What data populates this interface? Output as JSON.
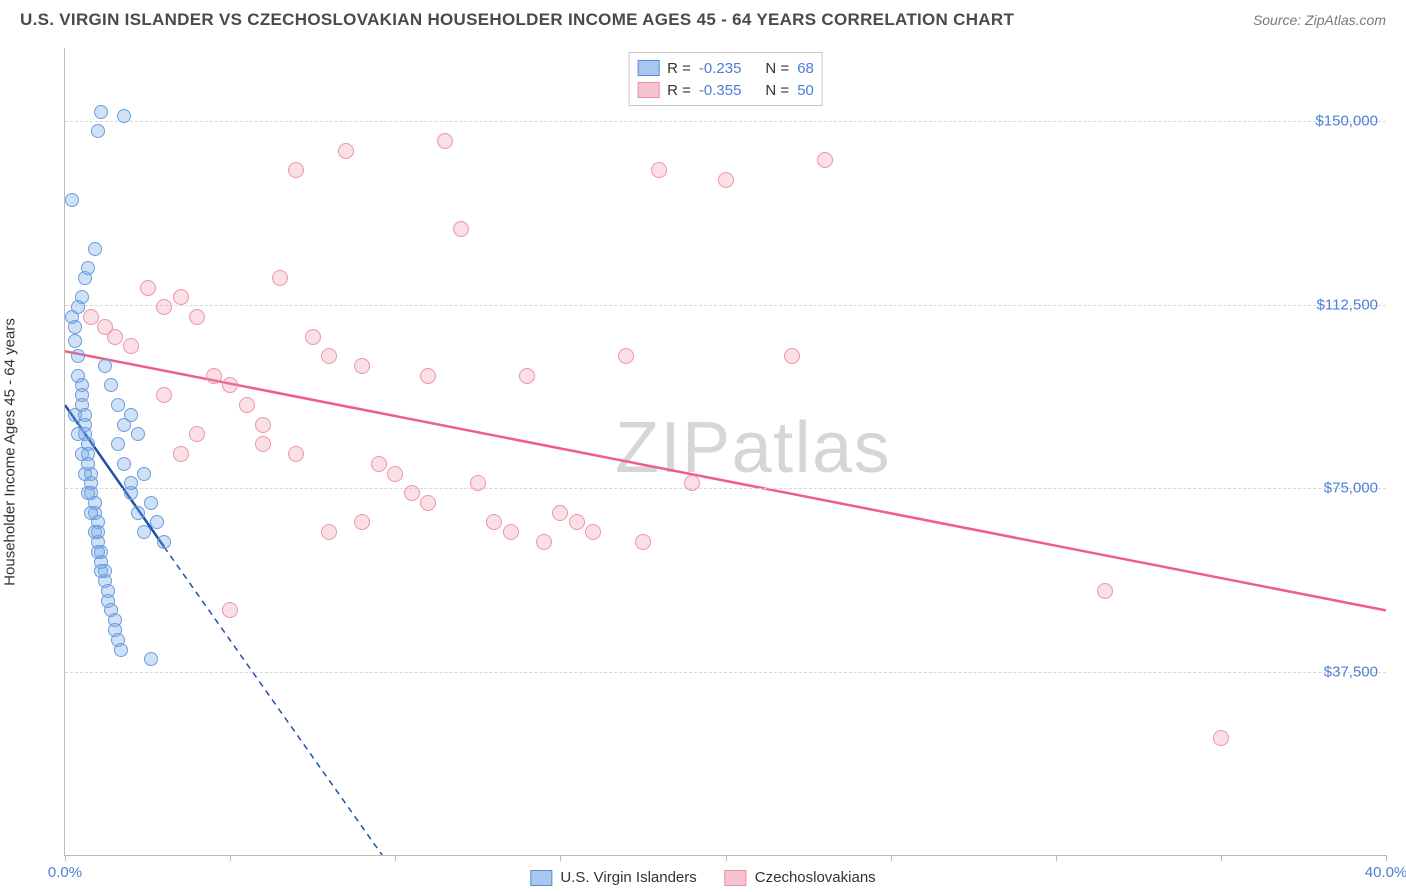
{
  "title": "U.S. VIRGIN ISLANDER VS CZECHOSLOVAKIAN HOUSEHOLDER INCOME AGES 45 - 64 YEARS CORRELATION CHART",
  "source": "Source: ZipAtlas.com",
  "ylabel": "Householder Income Ages 45 - 64 years",
  "watermark_left": "ZIP",
  "watermark_right": "atlas",
  "chart": {
    "type": "scatter",
    "background_color": "#ffffff",
    "grid_color": "#d8d8d8",
    "axis_color": "#bbbbbb",
    "label_color": "#4a7fd6",
    "xlim": [
      0,
      40
    ],
    "ylim": [
      0,
      165000
    ],
    "xticks": [
      0,
      5,
      10,
      15,
      20,
      25,
      30,
      35,
      40
    ],
    "yticks": [
      37500,
      75000,
      112500,
      150000
    ],
    "xtick_labels": {
      "0": "0.0%",
      "40": "40.0%"
    },
    "ytick_labels": {
      "37500": "$37,500",
      "75000": "$75,000",
      "112500": "$112,500",
      "150000": "$150,000"
    },
    "legend_top": [
      {
        "swatch_fill": "#a9c7ee",
        "swatch_border": "#5a8cd6",
        "r_label": "R =",
        "r": "-0.235",
        "n_label": "N =",
        "n": "68"
      },
      {
        "swatch_fill": "#f6c3ce",
        "swatch_border": "#e98fa5",
        "r_label": "R =",
        "r": "-0.355",
        "n_label": "N =",
        "n": "50"
      }
    ],
    "legend_bottom": [
      {
        "swatch_fill": "#a9c7ee",
        "swatch_border": "#5a8cd6",
        "label": "U.S. Virgin Islanders"
      },
      {
        "swatch_fill": "#f6c3ce",
        "swatch_border": "#e98fa5",
        "label": "Czechoslovakians"
      }
    ],
    "series": [
      {
        "name": "usvi",
        "color_fill": "rgba(120,170,230,0.35)",
        "color_border": "#6a9ee0",
        "marker_size": 14,
        "trend": {
          "color": "#1f4fb0",
          "width": 2.5,
          "dash": "6 5",
          "x1": 0,
          "y1": 92000,
          "x2": 9.6,
          "y2": 0,
          "solid_until_x": 3.0,
          "solid_until_y": 63000
        },
        "points": [
          [
            0.2,
            110000
          ],
          [
            0.3,
            108000
          ],
          [
            0.3,
            105000
          ],
          [
            0.4,
            102000
          ],
          [
            0.4,
            98000
          ],
          [
            0.5,
            96000
          ],
          [
            0.5,
            94000
          ],
          [
            0.5,
            92000
          ],
          [
            0.6,
            90000
          ],
          [
            0.6,
            88000
          ],
          [
            0.6,
            86000
          ],
          [
            0.7,
            84000
          ],
          [
            0.7,
            82000
          ],
          [
            0.7,
            80000
          ],
          [
            0.8,
            78000
          ],
          [
            0.8,
            76000
          ],
          [
            0.8,
            74000
          ],
          [
            0.9,
            72000
          ],
          [
            0.9,
            70000
          ],
          [
            1.0,
            68000
          ],
          [
            1.0,
            66000
          ],
          [
            1.0,
            64000
          ],
          [
            1.1,
            62000
          ],
          [
            1.1,
            60000
          ],
          [
            1.2,
            58000
          ],
          [
            1.2,
            56000
          ],
          [
            1.3,
            54000
          ],
          [
            1.3,
            52000
          ],
          [
            1.4,
            50000
          ],
          [
            1.5,
            48000
          ],
          [
            1.5,
            46000
          ],
          [
            1.6,
            44000
          ],
          [
            1.7,
            42000
          ],
          [
            0.4,
            112000
          ],
          [
            0.5,
            114000
          ],
          [
            0.6,
            118000
          ],
          [
            0.7,
            120000
          ],
          [
            0.9,
            124000
          ],
          [
            1.0,
            148000
          ],
          [
            1.1,
            152000
          ],
          [
            0.2,
            134000
          ],
          [
            1.8,
            151000
          ],
          [
            2.0,
            90000
          ],
          [
            2.2,
            86000
          ],
          [
            2.4,
            78000
          ],
          [
            2.6,
            72000
          ],
          [
            2.8,
            68000
          ],
          [
            3.0,
            64000
          ],
          [
            1.6,
            92000
          ],
          [
            1.8,
            88000
          ],
          [
            2.0,
            74000
          ],
          [
            2.2,
            70000
          ],
          [
            2.4,
            66000
          ],
          [
            1.2,
            100000
          ],
          [
            1.4,
            96000
          ],
          [
            1.6,
            84000
          ],
          [
            1.8,
            80000
          ],
          [
            2.0,
            76000
          ],
          [
            0.3,
            90000
          ],
          [
            0.4,
            86000
          ],
          [
            0.5,
            82000
          ],
          [
            0.6,
            78000
          ],
          [
            0.7,
            74000
          ],
          [
            0.8,
            70000
          ],
          [
            0.9,
            66000
          ],
          [
            1.0,
            62000
          ],
          [
            1.1,
            58000
          ],
          [
            2.6,
            40000
          ]
        ]
      },
      {
        "name": "czech",
        "color_fill": "rgba(240,150,170,0.3)",
        "color_border": "#ec94aa",
        "marker_size": 16,
        "trend": {
          "color": "#ee5e86",
          "width": 2.5,
          "dash": "",
          "x1": 0,
          "y1": 103000,
          "x2": 40,
          "y2": 50000
        },
        "points": [
          [
            0.8,
            110000
          ],
          [
            1.2,
            108000
          ],
          [
            1.5,
            106000
          ],
          [
            2.0,
            104000
          ],
          [
            2.5,
            116000
          ],
          [
            3.0,
            112000
          ],
          [
            3.5,
            114000
          ],
          [
            4.0,
            110000
          ],
          [
            4.5,
            98000
          ],
          [
            5.0,
            96000
          ],
          [
            5.5,
            92000
          ],
          [
            6.0,
            88000
          ],
          [
            6.5,
            118000
          ],
          [
            7.0,
            140000
          ],
          [
            7.5,
            106000
          ],
          [
            8.0,
            102000
          ],
          [
            8.5,
            144000
          ],
          [
            9.0,
            100000
          ],
          [
            9.5,
            80000
          ],
          [
            10.0,
            78000
          ],
          [
            10.5,
            74000
          ],
          [
            11.0,
            72000
          ],
          [
            11.5,
            146000
          ],
          [
            12.0,
            128000
          ],
          [
            12.5,
            76000
          ],
          [
            13.0,
            68000
          ],
          [
            13.5,
            66000
          ],
          [
            14.0,
            98000
          ],
          [
            14.5,
            64000
          ],
          [
            15.0,
            70000
          ],
          [
            15.5,
            68000
          ],
          [
            16.0,
            66000
          ],
          [
            17.0,
            102000
          ],
          [
            17.5,
            64000
          ],
          [
            18.0,
            140000
          ],
          [
            19.0,
            76000
          ],
          [
            20.0,
            138000
          ],
          [
            22.0,
            102000
          ],
          [
            23.0,
            142000
          ],
          [
            5.0,
            50000
          ],
          [
            6.0,
            84000
          ],
          [
            7.0,
            82000
          ],
          [
            8.0,
            66000
          ],
          [
            9.0,
            68000
          ],
          [
            4.0,
            86000
          ],
          [
            3.5,
            82000
          ],
          [
            3.0,
            94000
          ],
          [
            31.5,
            54000
          ],
          [
            35.0,
            24000
          ],
          [
            11.0,
            98000
          ]
        ]
      }
    ]
  }
}
